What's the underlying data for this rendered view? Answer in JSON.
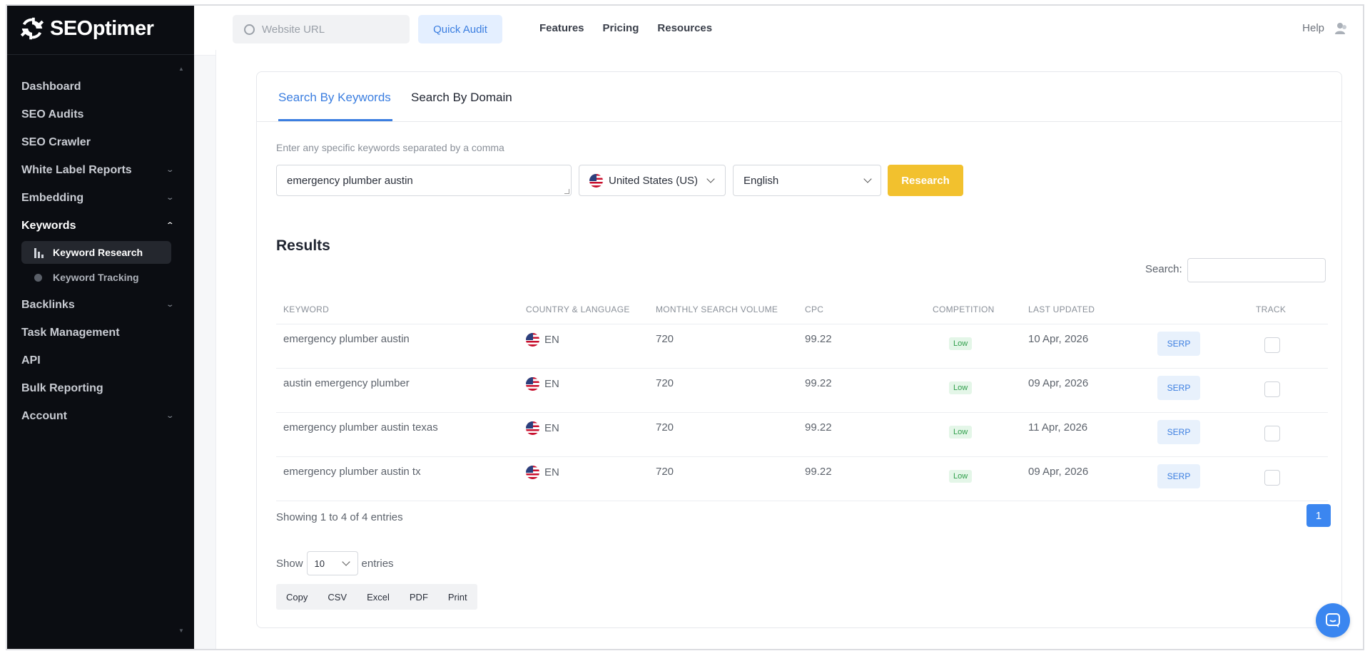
{
  "app": {
    "logo_text": "SEOptimer"
  },
  "sidebar": {
    "items": [
      {
        "label": "Dashboard",
        "chevron": false
      },
      {
        "label": "SEO Audits",
        "chevron": false
      },
      {
        "label": "SEO Crawler",
        "chevron": false
      },
      {
        "label": "White Label Reports",
        "chevron": true
      },
      {
        "label": "Embedding",
        "chevron": true
      },
      {
        "label": "Keywords",
        "chevron": true,
        "expanded": true
      },
      {
        "label": "Backlinks",
        "chevron": true
      },
      {
        "label": "Task Management",
        "chevron": false
      },
      {
        "label": "API",
        "chevron": false
      },
      {
        "label": "Bulk Reporting",
        "chevron": false
      },
      {
        "label": "Account",
        "chevron": true
      }
    ],
    "sub_items": [
      {
        "label": "Keyword Research",
        "active": true,
        "icon": "bar-chart-icon"
      },
      {
        "label": "Keyword Tracking",
        "active": false,
        "icon": "magnifier-icon"
      }
    ]
  },
  "topbar": {
    "url_placeholder": "Website URL",
    "quick_audit_label": "Quick Audit",
    "links": [
      "Features",
      "Pricing",
      "Resources"
    ],
    "help_label": "Help"
  },
  "tabs": {
    "active": "Search By Keywords",
    "inactive": "Search By Domain"
  },
  "form": {
    "hint": "Enter any specific keywords separated by a comma",
    "keywords_value": "emergency plumber austin",
    "country": "United States (US)",
    "language": "English",
    "research_label": "Research"
  },
  "results": {
    "title": "Results",
    "search_label": "Search:",
    "columns": [
      "KEYWORD",
      "COUNTRY & LANGUAGE",
      "MONTHLY SEARCH VOLUME",
      "CPC",
      "COMPETITION",
      "LAST UPDATED",
      "TRACK"
    ],
    "rows": [
      {
        "keyword": "emergency plumber austin",
        "lang": "EN",
        "volume": "720",
        "cpc": "99.22",
        "competition": "Low",
        "updated": "10 Apr, 2026",
        "serp": "SERP"
      },
      {
        "keyword": "austin emergency plumber",
        "lang": "EN",
        "volume": "720",
        "cpc": "99.22",
        "competition": "Low",
        "updated": "09 Apr, 2026",
        "serp": "SERP"
      },
      {
        "keyword": "emergency plumber austin texas",
        "lang": "EN",
        "volume": "720",
        "cpc": "99.22",
        "competition": "Low",
        "updated": "11 Apr, 2026",
        "serp": "SERP"
      },
      {
        "keyword": "emergency plumber austin tx",
        "lang": "EN",
        "volume": "720",
        "cpc": "99.22",
        "competition": "Low",
        "updated": "09 Apr, 2026",
        "serp": "SERP"
      }
    ],
    "entries_info": "Showing 1 to 4 of 4 entries",
    "page": "1",
    "show_label": "Show",
    "show_value": "10",
    "entries_label": "entries",
    "export_buttons": [
      "Copy",
      "CSV",
      "Excel",
      "PDF",
      "Print"
    ]
  },
  "colors": {
    "accent": "#3b7ee0",
    "research": "#f2c12e",
    "sidebar_bg": "#0b0d12",
    "low_badge": "#2e9e4a"
  }
}
